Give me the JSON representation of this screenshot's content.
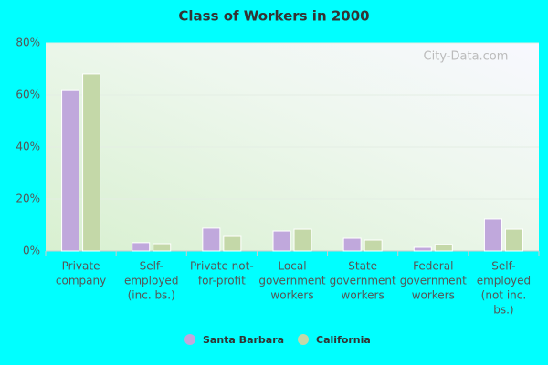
{
  "chart_data": {
    "type": "bar",
    "title": "Class of Workers in 2000",
    "watermark": "City-Data.com",
    "categories": [
      [
        "Private",
        "company"
      ],
      [
        "Self-",
        "employed",
        "(inc. bs.)"
      ],
      [
        "Private not-",
        "for-profit"
      ],
      [
        "Local",
        "government",
        "workers"
      ],
      [
        "State",
        "government",
        "workers"
      ],
      [
        "Federal",
        "government",
        "workers"
      ],
      [
        "Self-",
        "employed",
        "(not inc.",
        "bs.)"
      ]
    ],
    "series": [
      {
        "name": "Santa Barbara",
        "color": "#c0a8dc",
        "values": [
          61.7,
          3.2,
          8.8,
          7.7,
          4.9,
          1.4,
          12.3
        ]
      },
      {
        "name": "California",
        "color": "#c4d8a8",
        "values": [
          68.1,
          2.8,
          5.6,
          8.4,
          4.2,
          2.5,
          8.4
        ]
      }
    ],
    "ylim": [
      0,
      80
    ],
    "yticks": [
      {
        "value": 0,
        "label": "0%"
      },
      {
        "value": 20,
        "label": "20%"
      },
      {
        "value": 40,
        "label": "40%"
      },
      {
        "value": 60,
        "label": "60%"
      },
      {
        "value": 80,
        "label": "80%"
      }
    ],
    "grid": true
  }
}
